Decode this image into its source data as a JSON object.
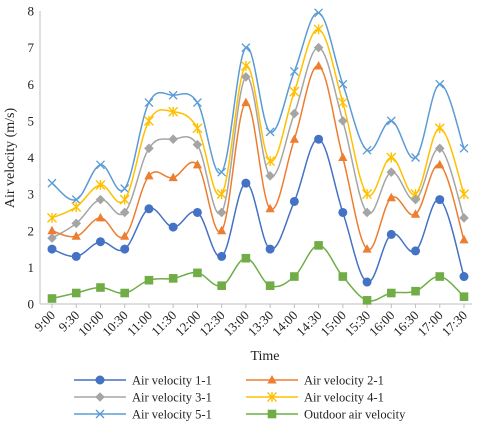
{
  "chart_data": {
    "type": "line",
    "xlabel": "Time",
    "ylabel": "Air velocity (m/s)",
    "ylim": [
      0,
      8
    ],
    "yticks": [
      0,
      1,
      2,
      3,
      4,
      5,
      6,
      7,
      8
    ],
    "grid": false,
    "legend_position": "bottom",
    "categories": [
      "9:00",
      "9:30",
      "10:00",
      "10:30",
      "11:00",
      "11:30",
      "12:00",
      "12:30",
      "13:00",
      "13:30",
      "14:00",
      "14:30",
      "15:00",
      "15:30",
      "16:00",
      "16:30",
      "17:00",
      "17:30"
    ],
    "series": [
      {
        "name": "Air velocity 1-1",
        "color": "#4472c4",
        "marker": "circle",
        "values": [
          1.5,
          1.3,
          1.7,
          1.5,
          2.6,
          2.1,
          2.5,
          1.3,
          3.3,
          1.5,
          2.8,
          4.5,
          2.5,
          0.6,
          1.9,
          1.45,
          2.85,
          0.75
        ]
      },
      {
        "name": "Air velocity 2-1",
        "color": "#ed7d31",
        "marker": "triangle",
        "values": [
          2.0,
          1.85,
          2.35,
          1.85,
          3.5,
          3.45,
          3.8,
          2.0,
          5.5,
          2.6,
          4.5,
          6.5,
          4.0,
          1.5,
          2.9,
          2.45,
          3.8,
          1.75
        ]
      },
      {
        "name": "Air velocity 3-1",
        "color": "#a5a5a5",
        "marker": "diamond",
        "values": [
          1.8,
          2.2,
          2.85,
          2.5,
          4.25,
          4.5,
          4.35,
          2.5,
          6.2,
          3.5,
          5.2,
          7.0,
          5.0,
          2.5,
          3.6,
          2.85,
          4.25,
          2.35
        ]
      },
      {
        "name": "Air velocity 4-1",
        "color": "#ffc000",
        "marker": "star",
        "values": [
          2.35,
          2.65,
          3.25,
          2.85,
          5.0,
          5.25,
          4.8,
          3.0,
          6.5,
          3.9,
          5.8,
          7.5,
          5.5,
          3.0,
          4.0,
          3.0,
          4.8,
          3.0
        ]
      },
      {
        "name": "Air velocity 5-1",
        "color": "#5b9bd5",
        "marker": "x",
        "values": [
          3.3,
          2.85,
          3.8,
          3.15,
          5.5,
          5.7,
          5.5,
          3.6,
          7.0,
          4.7,
          6.35,
          7.95,
          6.0,
          4.2,
          5.0,
          4.0,
          6.0,
          4.25
        ]
      },
      {
        "name": "Outdoor air velocity",
        "color": "#70ad47",
        "marker": "square",
        "values": [
          0.15,
          0.3,
          0.45,
          0.3,
          0.65,
          0.7,
          0.85,
          0.5,
          1.25,
          0.5,
          0.75,
          1.6,
          0.75,
          0.1,
          0.3,
          0.35,
          0.75,
          0.2
        ]
      }
    ]
  }
}
